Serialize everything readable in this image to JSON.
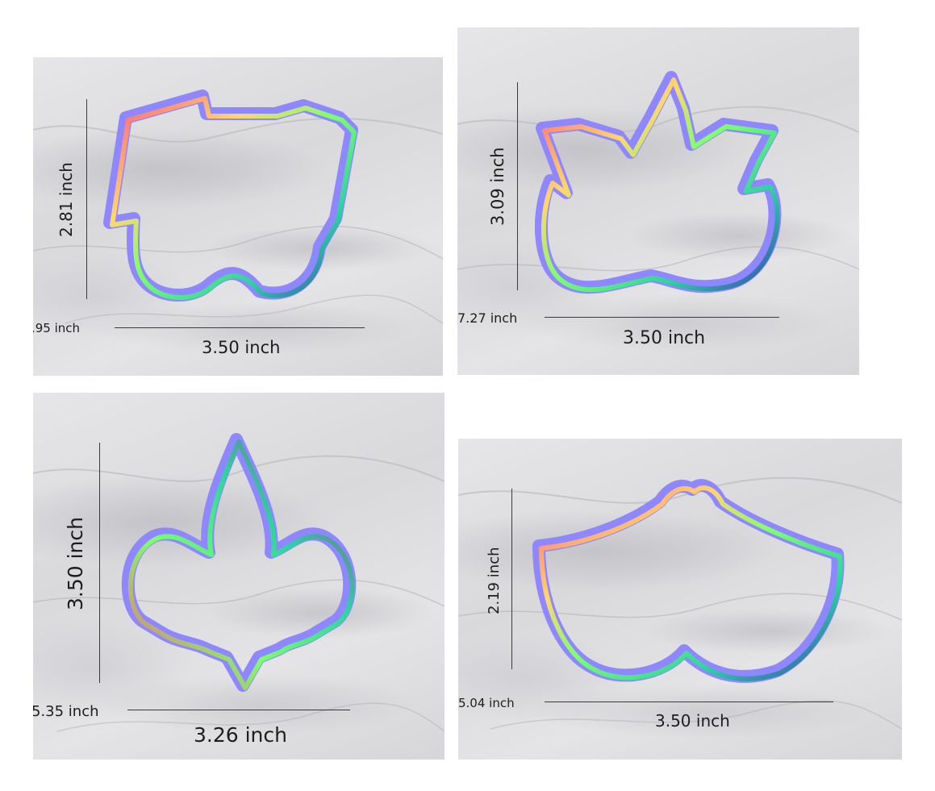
{
  "colors": {
    "outline": "#8e87ff",
    "wall_gradient": [
      "#ff5c7a",
      "#ffd66e",
      "#7cff6e",
      "#2dd4a0",
      "#3b3fb8",
      "#a6249a"
    ]
  },
  "panels": [
    {
      "shape": "train",
      "height_label": "2.81 inch",
      "width_label": "3.50 inch",
      "corner_label": ".95 inch"
    },
    {
      "shape": "pumpkin-leaf",
      "height_label": "3.09 inch",
      "width_label": "3.50 inch",
      "corner_label": "7.27 inch"
    },
    {
      "shape": "fleur-de-lis",
      "height_label": "3.50 inch",
      "width_label": "3.26 inch",
      "corner_label": "5.35 inch"
    },
    {
      "shape": "lotus",
      "height_label": "2.19 inch",
      "width_label": "3.50 inch",
      "corner_label": "5.04 inch"
    }
  ]
}
